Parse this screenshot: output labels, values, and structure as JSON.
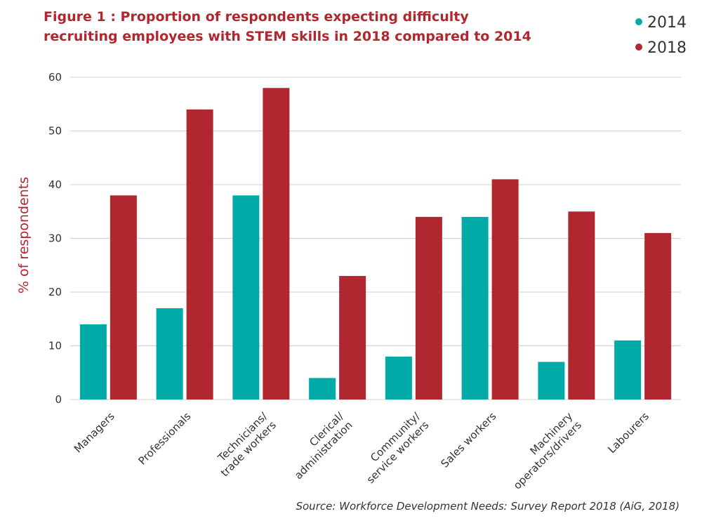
{
  "chart_data": {
    "type": "bar",
    "title": [
      "Figure 1 : Proportion of respondents expecting difficulty",
      "recruiting employees with STEM skills in 2018 compared to 2014"
    ],
    "y_label": "% of respondents",
    "source": "Source: Workforce Development Needs: Survey Report 2018 (AiG, 2018)",
    "categories": [
      [
        "Managers"
      ],
      [
        "Professionals"
      ],
      [
        "Technicians/",
        "trade workers"
      ],
      [
        "Clerical/",
        "administration"
      ],
      [
        "Community/",
        "service workers"
      ],
      [
        "Sales workers"
      ],
      [
        "Machinery",
        "operators/drivers"
      ],
      [
        "Labourers"
      ]
    ],
    "series": [
      {
        "name": "2014",
        "color": "#00aaa6",
        "values": [
          14,
          17,
          38,
          4,
          8,
          34,
          7,
          11
        ]
      },
      {
        "name": "2018",
        "color": "#b0272f",
        "values": [
          38,
          54,
          58,
          23,
          34,
          41,
          35,
          31
        ]
      }
    ],
    "ylim": [
      0,
      60
    ],
    "yticks": [
      0,
      10,
      20,
      30,
      40,
      50,
      60
    ],
    "grid": true,
    "legend": "top-right"
  }
}
